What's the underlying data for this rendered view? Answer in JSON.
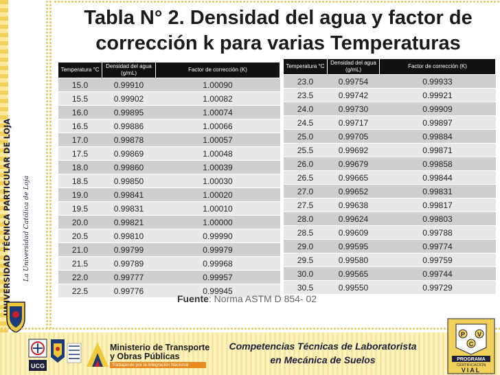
{
  "title": "Tabla N° 2. Densidad del agua y factor de corrección k para varias Temperaturas",
  "university": {
    "name": "UNIVERSIDAD TÉCNICA PARTICULAR DE LOJA",
    "motto": "La Universidad Católica de Loja"
  },
  "table_left": {
    "headers": [
      "Temperatura °C",
      "Densidad del agua (g/mL)",
      "Factor de corrección (K)"
    ],
    "rows": [
      [
        "15.0",
        "0.99910",
        "1.00090"
      ],
      [
        "15.5",
        "0.99902",
        "1.00082"
      ],
      [
        "16.0",
        "0.99895",
        "1.00074"
      ],
      [
        "16.5",
        "0.99886",
        "1.00066"
      ],
      [
        "17.0",
        "0.99878",
        "1.00057"
      ],
      [
        "17.5",
        "0.99869",
        "1.00048"
      ],
      [
        "18.0",
        "0.99860",
        "1.00039"
      ],
      [
        "18.5",
        "0.99850",
        "1.00030"
      ],
      [
        "19.0",
        "0.99841",
        "1.00020"
      ],
      [
        "19.5",
        "0.99831",
        "1.00010"
      ],
      [
        "20.0",
        "0.99821",
        "1.00000"
      ],
      [
        "20.5",
        "0.99810",
        "0.99990"
      ],
      [
        "21.0",
        "0.99799",
        "0.99979"
      ],
      [
        "21.5",
        "0.99789",
        "0.99968"
      ],
      [
        "22.0",
        "0.99777",
        "0.99957"
      ],
      [
        "22.5",
        "0.99776",
        "0.99945"
      ]
    ]
  },
  "table_right": {
    "headers": [
      "Temperatura °C",
      "Densidad del agua (g/mL)",
      "Factor de corrección (K)"
    ],
    "rows": [
      [
        "23.0",
        "0.99754",
        "0.99933"
      ],
      [
        "23.5",
        "0.99742",
        "0.99921"
      ],
      [
        "24.0",
        "0.99730",
        "0.99909"
      ],
      [
        "24.5",
        "0.99717",
        "0.99897"
      ],
      [
        "25.0",
        "0.99705",
        "0.99884"
      ],
      [
        "25.5",
        "0.99692",
        "0.99871"
      ],
      [
        "26.0",
        "0.99679",
        "0.99858"
      ],
      [
        "26.5",
        "0.99665",
        "0.99844"
      ],
      [
        "27.0",
        "0.99652",
        "0.99831"
      ],
      [
        "27.5",
        "0.99638",
        "0.99817"
      ],
      [
        "28.0",
        "0.99624",
        "0.99803"
      ],
      [
        "28.5",
        "0.99609",
        "0.99788"
      ],
      [
        "29.0",
        "0.99595",
        "0.99774"
      ],
      [
        "29.5",
        "0.99580",
        "0.99759"
      ],
      [
        "30.0",
        "0.99565",
        "0.99744"
      ],
      [
        "30.5",
        "0.99550",
        "0.99729"
      ]
    ]
  },
  "source": {
    "label": "Fuente",
    "text": ": Norma ASTM D 854- 02"
  },
  "footer": {
    "ministry_line1": "Ministerio de Transporte",
    "ministry_line2": "y Obras Públicas",
    "ministry_tagline": "Trabajando por la integración Nacional",
    "logo_text": "UCG",
    "course_line1": "Competencias Técnicas de Laboratorista",
    "course_line2": "en Mecánica de Suelos",
    "pvc_letters": [
      "P",
      "V",
      "C"
    ],
    "pvc_line1": "PROGRAMA",
    "pvc_line2": "CERTIFICACION",
    "pvc_line3": "VIAL"
  },
  "colors": {
    "header_bg": "#111111",
    "row_dark": "#cfcfcf",
    "row_light": "#e8e8e8",
    "accent_yellow": "#f2d15a",
    "navy": "#1b1f3a"
  }
}
